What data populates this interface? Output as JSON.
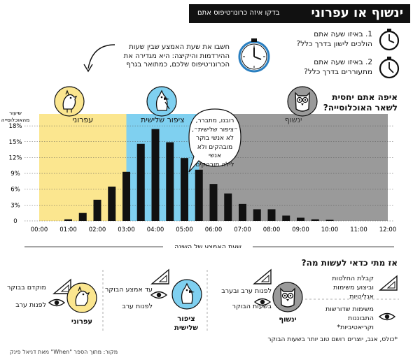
{
  "header": {
    "title": "ינשוף או עפרוני",
    "subtitle": "בדקו איזה כרונו־טיפוס אתם"
  },
  "questions": [
    {
      "line1": "1. באיזו שעה אתם",
      "line2": "הולכים לישון בדרך כלל?"
    },
    {
      "line1": "2. באיזו שעה אתם",
      "line2": "מתעוררים בדרך כלל?"
    }
  ],
  "instruction": {
    "line1": "חשבו את שעת האמצע שבין שעות",
    "line2": "ההירדמות והיקיצה: היא מגדירה את",
    "line3": "הכרונו־טיפוס שלכם, כמתואר בגרף"
  },
  "population_question": {
    "line1": "איפה אתם יחסית",
    "line2": "לשאר האוכלוסייה?"
  },
  "speech_bubble": {
    "lines": [
      "רובנו, מתברר,",
      "״ציפור שלישית״,",
      "לא אנשי בוקר",
      "מובהקים ולא אנשי",
      "לילה מובהקים"
    ]
  },
  "colors": {
    "lark_zone": "#fbe68f",
    "third_bird_zone": "#7fd0f0",
    "owl_zone": "#9a9a9a",
    "bars": "#111111"
  },
  "chart_data": {
    "type": "bar",
    "ylabel": "שיעור מהאוכלוסייה",
    "xlabel": "שעת האמצע של השינה",
    "ylim": [
      0,
      18
    ],
    "yticks": [
      "0",
      "3%",
      "6%",
      "9%",
      "12%",
      "15%",
      "18%"
    ],
    "xticks": [
      "00:00",
      "01:00",
      "02:00",
      "03:00",
      "04:00",
      "05:00",
      "06:00",
      "07:00",
      "08:00",
      "09:00",
      "10:00",
      "11:00",
      "12:00"
    ],
    "x": [
      1.0,
      1.5,
      2.0,
      2.5,
      3.0,
      3.5,
      4.0,
      4.5,
      5.0,
      5.5,
      6.0,
      6.5,
      7.0,
      7.5,
      8.0,
      8.5,
      9.0,
      9.5,
      10.0
    ],
    "values": [
      0.3,
      1.5,
      4.0,
      6.5,
      9.3,
      14.6,
      17.4,
      14.9,
      11.9,
      9.7,
      7.0,
      5.2,
      3.2,
      2.2,
      2.2,
      1.0,
      0.6,
      0.3,
      0.2
    ],
    "grid": true,
    "zones": [
      {
        "name": "עפרוני",
        "from": "00:00",
        "to": "03:00"
      },
      {
        "name": "ציפור שלישית",
        "from": "03:00",
        "to": "05:30"
      },
      {
        "name": "ינשוף",
        "from": "05:30",
        "to": "12:00"
      }
    ]
  },
  "recommendations": {
    "title": "אז מתי כדאי לעשות מה?",
    "lark": {
      "name": "עפרוני",
      "decide": "מוקדם בבוקר",
      "create": "לפנות ערב"
    },
    "third": {
      "name_line1": "ציפור",
      "name_line2": "שלישית",
      "decide": "עד אמצע הבוקר",
      "create": "לפנות ערב"
    },
    "owl": {
      "name": "ינשוף",
      "decide": "לפנות ערב ובערב",
      "create": "בשעות הבוקר"
    },
    "legend": [
      {
        "line1": "קבלת החלטות",
        "line2": "וביצוע משימות",
        "line3": "אנליטיות"
      },
      {
        "line1": "משימות שדורשות",
        "line2": "התבוננות",
        "line3": "וקריאטיביות*"
      }
    ]
  },
  "footnote": "*כולס, אגב, יוצרים רושם טוב יותר בשעות הבוקר",
  "source": "מקור: מתוך הספר \"When\" מאת דניאל פינק"
}
